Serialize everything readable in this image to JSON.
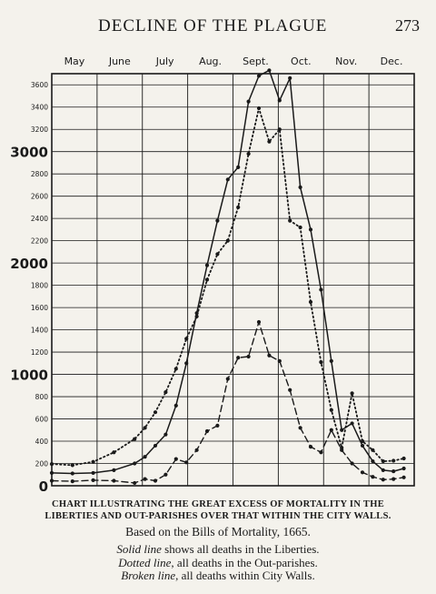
{
  "page": {
    "running_title": "DECLINE OF THE PLAGUE",
    "page_number": "273"
  },
  "caption": {
    "title_line1": "CHART ILLUSTRATING THE GREAT EXCESS OF MORTALITY IN THE",
    "title_line2": "LIBERTIES AND OUT-PARISHES OVER THAT WITHIN THE CITY WALLS.",
    "source": "Based on the Bills of Mortality, 1665."
  },
  "legend": [
    {
      "style_word": "Solid line",
      "text": " shows all deaths in the Liberties."
    },
    {
      "style_word": "Dotted line",
      "text": ", all deaths in the Out-parishes."
    },
    {
      "style_word": "Broken line",
      "text": ", all deaths within City Walls."
    }
  ],
  "chart_data": {
    "type": "line",
    "months": [
      "May",
      "June",
      "July",
      "Aug.",
      "Sept.",
      "Oct.",
      "Nov.",
      "Dec."
    ],
    "y_ticks": [
      {
        "value": 0,
        "label": "0",
        "major": true
      },
      {
        "value": 200,
        "label": "200"
      },
      {
        "value": 400,
        "label": "400"
      },
      {
        "value": 600,
        "label": "600"
      },
      {
        "value": 800,
        "label": "800"
      },
      {
        "value": 1000,
        "label": "1000",
        "major": true
      },
      {
        "value": 1200,
        "label": "1200"
      },
      {
        "value": 1400,
        "label": "1400"
      },
      {
        "value": 1600,
        "label": "1600"
      },
      {
        "value": 1800,
        "label": "1800"
      },
      {
        "value": 2000,
        "label": "2000",
        "major": true
      },
      {
        "value": 2200,
        "label": "2200"
      },
      {
        "value": 2400,
        "label": "2400"
      },
      {
        "value": 2600,
        "label": "2600"
      },
      {
        "value": 2800,
        "label": "2800"
      },
      {
        "value": 3000,
        "label": "3000",
        "major": true
      },
      {
        "value": 3200,
        "label": "3200"
      },
      {
        "value": 3400,
        "label": "3400"
      },
      {
        "value": 3600,
        "label": "3600"
      }
    ],
    "ylim": [
      0,
      3700
    ],
    "x_range_weeks": [
      0,
      35
    ],
    "grid": true,
    "color": "#1a1a1a",
    "series": [
      {
        "line_style": "solid",
        "points": [
          [
            0,
            115
          ],
          [
            2,
            110
          ],
          [
            4,
            115
          ],
          [
            6,
            140
          ],
          [
            8,
            200
          ],
          [
            9,
            260
          ],
          [
            10,
            360
          ],
          [
            11,
            460
          ],
          [
            12,
            720
          ],
          [
            13,
            1100
          ],
          [
            14,
            1550
          ],
          [
            15,
            1980
          ],
          [
            16,
            2380
          ],
          [
            17,
            2750
          ],
          [
            18,
            2860
          ],
          [
            19,
            3450
          ],
          [
            20,
            3680
          ],
          [
            21,
            3730
          ],
          [
            22,
            3460
          ],
          [
            23,
            3660
          ],
          [
            24,
            2680
          ],
          [
            25,
            2300
          ],
          [
            26,
            1760
          ],
          [
            27,
            1120
          ],
          [
            28,
            500
          ],
          [
            29,
            560
          ],
          [
            30,
            360
          ],
          [
            31,
            220
          ],
          [
            32,
            140
          ],
          [
            33,
            130
          ],
          [
            34,
            155
          ]
        ]
      },
      {
        "line_style": "dotted",
        "points": [
          [
            0,
            195
          ],
          [
            2,
            185
          ],
          [
            4,
            215
          ],
          [
            6,
            300
          ],
          [
            8,
            420
          ],
          [
            9,
            520
          ],
          [
            10,
            660
          ],
          [
            11,
            840
          ],
          [
            12,
            1050
          ],
          [
            13,
            1320
          ],
          [
            14,
            1520
          ],
          [
            15,
            1850
          ],
          [
            16,
            2080
          ],
          [
            17,
            2200
          ],
          [
            18,
            2500
          ],
          [
            19,
            2980
          ],
          [
            20,
            3390
          ],
          [
            21,
            3090
          ],
          [
            22,
            3200
          ],
          [
            23,
            2380
          ],
          [
            24,
            2320
          ],
          [
            25,
            1650
          ],
          [
            26,
            1110
          ],
          [
            27,
            680
          ],
          [
            28,
            340
          ],
          [
            29,
            830
          ],
          [
            30,
            400
          ],
          [
            31,
            320
          ],
          [
            32,
            220
          ],
          [
            33,
            225
          ],
          [
            34,
            245
          ]
        ]
      },
      {
        "line_style": "dashed",
        "points": [
          [
            0,
            45
          ],
          [
            2,
            40
          ],
          [
            4,
            50
          ],
          [
            6,
            45
          ],
          [
            8,
            25
          ],
          [
            9,
            60
          ],
          [
            10,
            45
          ],
          [
            11,
            100
          ],
          [
            12,
            240
          ],
          [
            13,
            210
          ],
          [
            14,
            320
          ],
          [
            15,
            490
          ],
          [
            16,
            540
          ],
          [
            17,
            960
          ],
          [
            18,
            1150
          ],
          [
            19,
            1160
          ],
          [
            20,
            1470
          ],
          [
            21,
            1170
          ],
          [
            22,
            1120
          ],
          [
            23,
            860
          ],
          [
            24,
            520
          ],
          [
            25,
            350
          ],
          [
            26,
            300
          ],
          [
            27,
            500
          ],
          [
            28,
            320
          ],
          [
            29,
            200
          ],
          [
            30,
            120
          ],
          [
            31,
            80
          ],
          [
            32,
            55
          ],
          [
            33,
            60
          ],
          [
            34,
            75
          ]
        ]
      }
    ]
  }
}
